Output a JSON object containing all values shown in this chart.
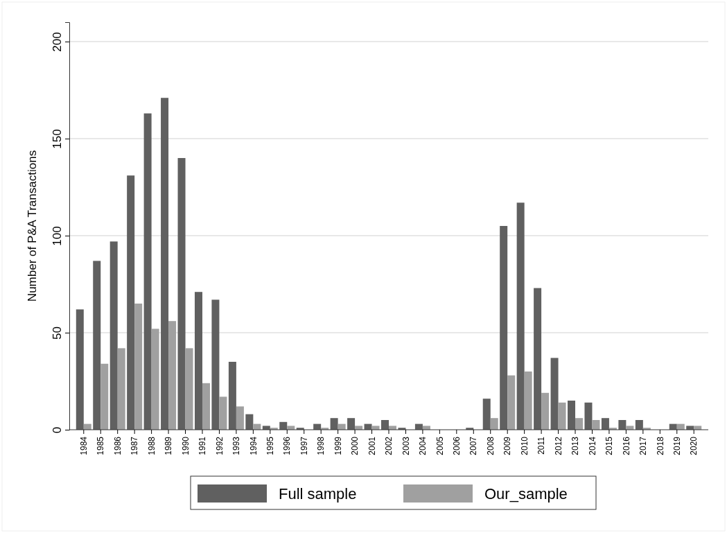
{
  "chart_data": {
    "type": "bar",
    "ylabel": "Number of P&A Transactions",
    "categories": [
      "1984",
      "1985",
      "1986",
      "1987",
      "1988",
      "1989",
      "1990",
      "1991",
      "1992",
      "1993",
      "1994",
      "1995",
      "1996",
      "1997",
      "1998",
      "1999",
      "2000",
      "2001",
      "2002",
      "2003",
      "2004",
      "2005",
      "2006",
      "2007",
      "2008",
      "2009",
      "2010",
      "2011",
      "2012",
      "2013",
      "2014",
      "2015",
      "2016",
      "2017",
      "2018",
      "2019",
      "2020"
    ],
    "series": [
      {
        "name": "Full sample",
        "color": "#606060",
        "values": [
          62,
          87,
          97,
          131,
          163,
          171,
          140,
          71,
          67,
          35,
          8,
          2,
          4,
          1,
          3,
          6,
          6,
          3,
          5,
          1,
          3,
          0,
          0,
          1,
          16,
          105,
          117,
          73,
          37,
          15,
          14,
          6,
          5,
          5,
          0,
          3,
          2
        ]
      },
      {
        "name": "Our_sample",
        "color": "#a0a0a0",
        "values": [
          3,
          34,
          42,
          65,
          52,
          56,
          42,
          24,
          17,
          12,
          3,
          1,
          2,
          0,
          1,
          3,
          2,
          2,
          2,
          0,
          2,
          0,
          0,
          0,
          6,
          28,
          30,
          19,
          14,
          6,
          5,
          1,
          2,
          1,
          0,
          3,
          2
        ]
      }
    ],
    "ylim": [
      0,
      210
    ],
    "yticks": [
      0,
      50,
      100,
      150,
      200
    ],
    "grid": "y",
    "legend": "bottom"
  }
}
